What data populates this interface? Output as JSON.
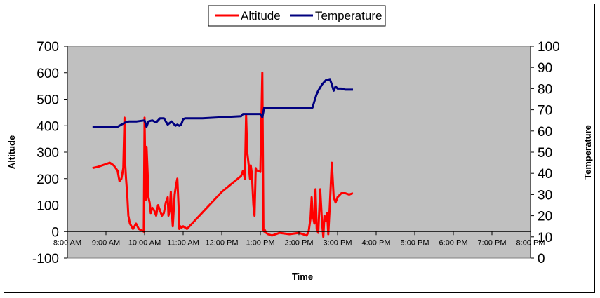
{
  "chart_data": {
    "type": "line",
    "title": "",
    "xlabel": "Time",
    "ylabel_left": "Altitude",
    "ylabel_right": "Temperature",
    "xlim": [
      8,
      20
    ],
    "ylim_left": [
      -100,
      700
    ],
    "ylim_right": [
      0,
      100
    ],
    "x_ticks": [
      "8:00 AM",
      "9:00 AM",
      "10:00 AM",
      "11:00 AM",
      "12:00 PM",
      "1:00 PM",
      "2:00 PM",
      "3:00 PM",
      "4:00 PM",
      "5:00 PM",
      "6:00 PM",
      "7:00 PM",
      "8:00 PM"
    ],
    "y_ticks_left": [
      "-100",
      "0",
      "100",
      "200",
      "300",
      "400",
      "500",
      "600",
      "700"
    ],
    "y_ticks_right": [
      "0",
      "10",
      "20",
      "30",
      "40",
      "50",
      "60",
      "70",
      "80",
      "90",
      "100"
    ],
    "grid": false,
    "plot_background": "#c0c0c0",
    "legend_position": "top",
    "series": [
      {
        "name": "Altitude",
        "axis": "left",
        "color": "#ff0000",
        "x": [
          8.65,
          8.8,
          9.0,
          9.1,
          9.2,
          9.3,
          9.35,
          9.4,
          9.45,
          9.48,
          9.5,
          9.52,
          9.55,
          9.58,
          9.62,
          9.7,
          9.78,
          9.85,
          9.92,
          9.98,
          10.0,
          10.03,
          10.05,
          10.08,
          10.1,
          10.13,
          10.16,
          10.2,
          10.25,
          10.3,
          10.35,
          10.4,
          10.45,
          10.5,
          10.55,
          10.6,
          10.62,
          10.65,
          10.68,
          10.7,
          10.73,
          10.78,
          10.82,
          10.85,
          10.88,
          10.9,
          10.93,
          10.96,
          11.0,
          11.05,
          11.1,
          12.0,
          12.5,
          12.55,
          12.6,
          12.63,
          12.66,
          12.7,
          12.73,
          12.75,
          12.78,
          12.82,
          12.85,
          12.88,
          12.9,
          12.95,
          13.0,
          13.05,
          13.08,
          13.1,
          13.12,
          13.15,
          13.2,
          13.3,
          13.5,
          13.75,
          14.0,
          14.1,
          14.2,
          14.25,
          14.28,
          14.3,
          14.33,
          14.36,
          14.4,
          14.43,
          14.46,
          14.5,
          14.55,
          14.6,
          14.63,
          14.66,
          14.7,
          14.73,
          14.76,
          14.8,
          14.85,
          14.9,
          14.95,
          15.0,
          15.1,
          15.2,
          15.3,
          15.4
        ],
        "y": [
          240,
          245,
          255,
          260,
          250,
          230,
          190,
          200,
          240,
          430,
          250,
          200,
          140,
          60,
          30,
          10,
          30,
          10,
          5,
          0,
          430,
          120,
          320,
          220,
          130,
          110,
          70,
          90,
          80,
          60,
          100,
          80,
          60,
          70,
          110,
          130,
          60,
          80,
          150,
          90,
          20,
          140,
          180,
          200,
          100,
          10,
          20,
          15,
          20,
          15,
          10,
          150,
          210,
          230,
          200,
          440,
          300,
          250,
          200,
          250,
          220,
          100,
          60,
          240,
          230,
          230,
          225,
          600,
          5,
          0,
          5,
          -5,
          -10,
          -15,
          -5,
          -10,
          -5,
          -10,
          -15,
          0,
          30,
          50,
          130,
          60,
          30,
          160,
          10,
          -5,
          160,
          30,
          -20,
          60,
          40,
          70,
          -10,
          100,
          260,
          130,
          110,
          130,
          145,
          145,
          140,
          145
        ]
      },
      {
        "name": "Temperature",
        "axis": "right",
        "color": "#00007f",
        "x": [
          8.65,
          9.3,
          9.4,
          9.5,
          9.6,
          9.8,
          10.0,
          10.05,
          10.1,
          10.2,
          10.3,
          10.4,
          10.5,
          10.6,
          10.7,
          10.8,
          10.85,
          10.9,
          10.95,
          11.0,
          11.05,
          11.1,
          11.5,
          12.0,
          12.5,
          12.55,
          13.0,
          13.05,
          13.1,
          13.5,
          14.0,
          14.2,
          14.35,
          14.4,
          14.45,
          14.5,
          14.6,
          14.7,
          14.8,
          14.85,
          14.9,
          14.95,
          15.0,
          15.1,
          15.2,
          15.4
        ],
        "y": [
          62,
          62,
          63,
          64,
          64.5,
          64.5,
          65,
          62,
          64.5,
          65,
          64,
          66,
          66,
          63,
          64.5,
          62.5,
          63,
          62.5,
          63,
          65.5,
          66,
          66,
          66,
          66.5,
          67,
          68,
          68,
          66.5,
          71,
          71,
          71,
          71,
          71,
          74,
          77,
          79,
          82,
          84,
          84.5,
          82,
          79,
          81,
          80,
          80,
          79.5,
          79.5
        ]
      }
    ]
  }
}
